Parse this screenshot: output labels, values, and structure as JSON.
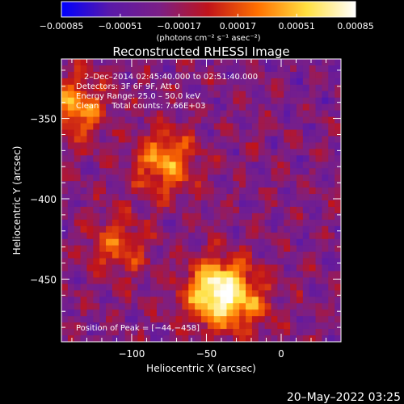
{
  "chart_data": {
    "type": "heatmap",
    "title": "Reconstructed RHESSI Image",
    "xlabel": "Heliocentric X (arcsec)",
    "ylabel": "Heliocentric Y (arcsec)",
    "xlim": [
      -147,
      40
    ],
    "ylim": [
      -489,
      -313
    ],
    "x_ticks": [
      {
        "value": -100,
        "label": "−100"
      },
      {
        "value": -50,
        "label": "−50"
      },
      {
        "value": 0,
        "label": "0"
      }
    ],
    "y_ticks": [
      {
        "value": -350,
        "label": "−350"
      },
      {
        "value": -400,
        "label": "−400"
      },
      {
        "value": -450,
        "label": "−450"
      }
    ],
    "colorbar": {
      "min": -0.00085,
      "max": 0.00085,
      "tick_values": [
        -0.00085,
        -0.00051,
        -0.00017,
        0.00017,
        0.00051,
        0.00085
      ],
      "tick_labels": [
        "−0.00085",
        "−0.00051",
        "−0.00017",
        "0.00017",
        "0.00051",
        "0.00085"
      ],
      "units_label": "(photons cm⁻² s⁻¹ asec⁻²)",
      "colors": [
        "#0000ff",
        "#5a19a8",
        "#7b1f86",
        "#c0141a",
        "#ff7000",
        "#ffe040",
        "#ffffff"
      ]
    },
    "annotations": [
      "2–Dec–2014 02:45:40.000 to 02:51:40.000",
      "Detectors: 3F 6F 9F, Att 0",
      "Energy Range: 25.0 – 50.0 keV",
      "Clean     Total counts: 7.66E+03"
    ],
    "peak_label": "Position of Peak = [−44,−458]",
    "peak_position": [
      -44,
      -458
    ],
    "sources": [
      {
        "x": -44,
        "y": -458,
        "strength": 1.0
      },
      {
        "x": -78,
        "y": -377,
        "strength": 0.62
      },
      {
        "x": -138,
        "y": -343,
        "strength": 0.6
      },
      {
        "x": -110,
        "y": -430,
        "strength": 0.42
      },
      {
        "x": -22,
        "y": -465,
        "strength": 0.38
      }
    ],
    "grid": false,
    "colormap": "blue-purple-red-yellow-white"
  },
  "footer": {
    "timestamp": "20–May–2022 03:25"
  }
}
